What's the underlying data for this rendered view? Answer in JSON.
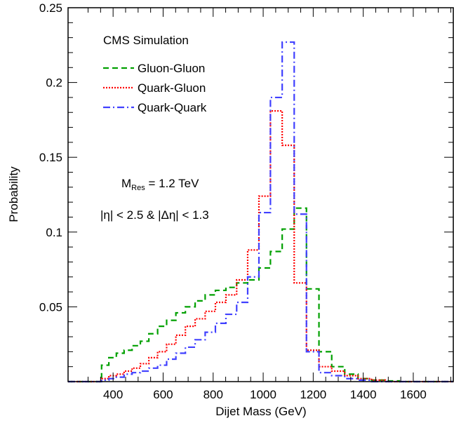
{
  "chart_data": {
    "type": "line",
    "subtype": "step-histogram",
    "title": "CMS Simulation",
    "xlabel": "Dijet Mass (GeV)",
    "ylabel": "Probability",
    "xlim": [
      220,
      1760
    ],
    "ylim": [
      0,
      0.25
    ],
    "x_ticks": [
      400,
      600,
      800,
      1000,
      1200,
      1400,
      1600
    ],
    "x_tick_labels": [
      "400",
      "600",
      "800",
      "1000",
      "1200",
      "1400",
      "1600"
    ],
    "y_ticks": [
      0.05,
      0.1,
      0.15,
      0.2,
      0.25
    ],
    "y_tick_labels": [
      "0.05",
      "0.1",
      "0.15",
      "0.2",
      "0.25"
    ],
    "legend_position": "top-left",
    "annotations": {
      "mres_main": "M",
      "mres_sub": "Res",
      "mres_value": " = 1.2 TeV",
      "eta_cut": "|η| < 2.5  &  |Δη| < 1.3"
    },
    "bin_edges": [
      220,
      354,
      383,
      413,
      444,
      476,
      509,
      543,
      578,
      614,
      651,
      689,
      728,
      768,
      809,
      851,
      894,
      938,
      983,
      1029,
      1076,
      1124,
      1173,
      1223,
      1274,
      1326,
      1379,
      1433,
      1488,
      1544,
      1760
    ],
    "series": [
      {
        "name": "Gluon-Gluon",
        "color": "#00a000",
        "dash": "8,5",
        "values": [
          0.0,
          0.011,
          0.016,
          0.019,
          0.021,
          0.024,
          0.027,
          0.032,
          0.037,
          0.041,
          0.046,
          0.05,
          0.054,
          0.058,
          0.061,
          0.063,
          0.066,
          0.068,
          0.076,
          0.087,
          0.102,
          0.116,
          0.062,
          0.02,
          0.01,
          0.005,
          0.002,
          0.001,
          0.0005,
          0.0
        ]
      },
      {
        "name": "Quark-Gluon",
        "color": "#ff0000",
        "dash": "2,2",
        "values": [
          0.0,
          0.002,
          0.004,
          0.005,
          0.007,
          0.009,
          0.012,
          0.016,
          0.02,
          0.025,
          0.031,
          0.037,
          0.042,
          0.047,
          0.053,
          0.058,
          0.068,
          0.088,
          0.124,
          0.181,
          0.158,
          0.066,
          0.021,
          0.01,
          0.007,
          0.004,
          0.002,
          0.001,
          0.0,
          0.0
        ]
      },
      {
        "name": "Quark-Quark",
        "color": "#4040ff",
        "dash": "10,4,2,4",
        "values": [
          0.0,
          0.001,
          0.002,
          0.003,
          0.005,
          0.006,
          0.007,
          0.009,
          0.011,
          0.015,
          0.019,
          0.023,
          0.028,
          0.033,
          0.039,
          0.045,
          0.053,
          0.07,
          0.113,
          0.19,
          0.227,
          0.112,
          0.02,
          0.006,
          0.004,
          0.002,
          0.001,
          0.0,
          0.0,
          0.0
        ]
      }
    ]
  }
}
